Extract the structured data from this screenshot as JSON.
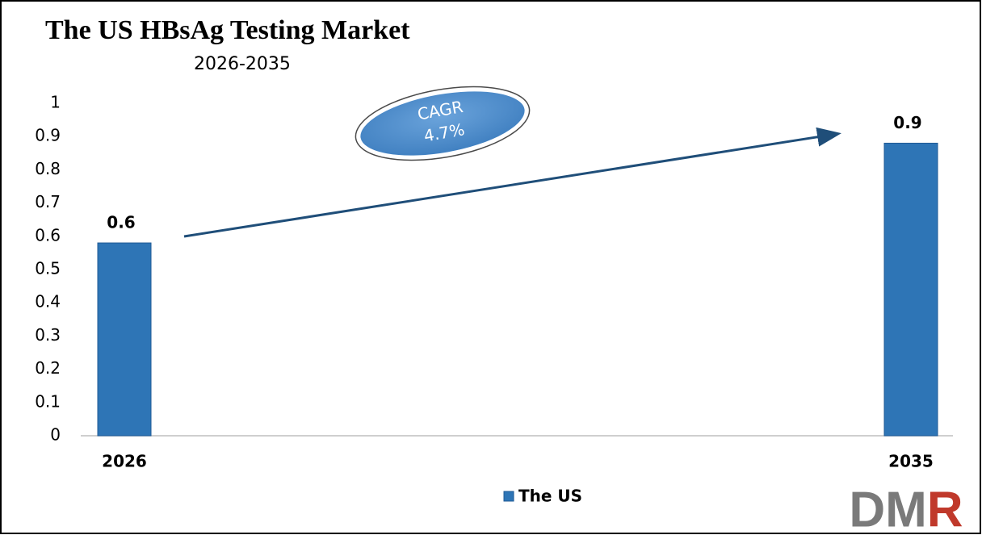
{
  "chart_data": {
    "type": "bar",
    "title": "The US HBsAg Testing Market",
    "subtitle": "2026-2035",
    "categories": [
      "2026",
      "2035"
    ],
    "series": [
      {
        "name": "The US",
        "color": "#2e75b6",
        "values": [
          0.58,
          0.88
        ],
        "value_labels": [
          "0.6",
          "0.9"
        ]
      }
    ],
    "ylim": [
      0,
      1
    ],
    "yticks": [
      0,
      0.1,
      0.2,
      0.3,
      0.4,
      0.5,
      0.6,
      0.7,
      0.8,
      0.9,
      1
    ],
    "annotation": {
      "label": "CAGR",
      "value": "4.7%"
    },
    "legend": "bottom",
    "logo": "DMR"
  }
}
